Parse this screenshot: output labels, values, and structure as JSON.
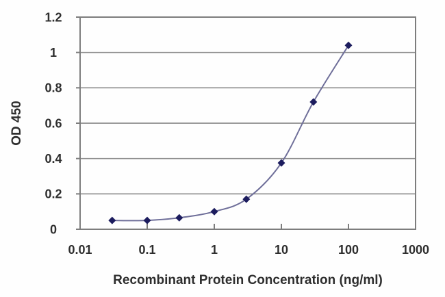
{
  "figure": {
    "kind": "elisa-binding-curve"
  },
  "colors": {
    "background": "#fefefe",
    "plot_background": "#ffffff",
    "line": "#6e6e99",
    "marker": "#1c1c5e",
    "grid": "#8c8c8c",
    "axis": "#7d7d7d",
    "text": "#2e2e2e"
  },
  "chart_data": {
    "type": "line",
    "title": "",
    "xlabel": "Recombinant Protein Concentration (ng/ml)",
    "ylabel": "OD 450",
    "x_scale": "log",
    "xlim": [
      0.01,
      1000
    ],
    "ylim": [
      0,
      1.2
    ],
    "x_ticks": [
      0.01,
      0.1,
      1,
      10,
      100,
      1000
    ],
    "x_tick_labels": [
      "0.01",
      "0.1",
      "1",
      "10",
      "100",
      "1000"
    ],
    "y_ticks": [
      0,
      0.2,
      0.4,
      0.6,
      0.8,
      1,
      1.2
    ],
    "y_tick_labels": [
      "0",
      "0.2",
      "0.4",
      "0.6",
      "0.8",
      "1",
      "1.2"
    ],
    "grid": "horizontal",
    "legend": "none",
    "series": [
      {
        "name": "OD 450",
        "marker": "diamond",
        "smooth": true,
        "points": [
          {
            "x": 0.03,
            "y": 0.05
          },
          {
            "x": 0.1,
            "y": 0.05
          },
          {
            "x": 0.3,
            "y": 0.065
          },
          {
            "x": 1,
            "y": 0.1
          },
          {
            "x": 3,
            "y": 0.17
          },
          {
            "x": 10,
            "y": 0.375
          },
          {
            "x": 30,
            "y": 0.72
          },
          {
            "x": 100,
            "y": 1.04
          }
        ]
      }
    ]
  }
}
